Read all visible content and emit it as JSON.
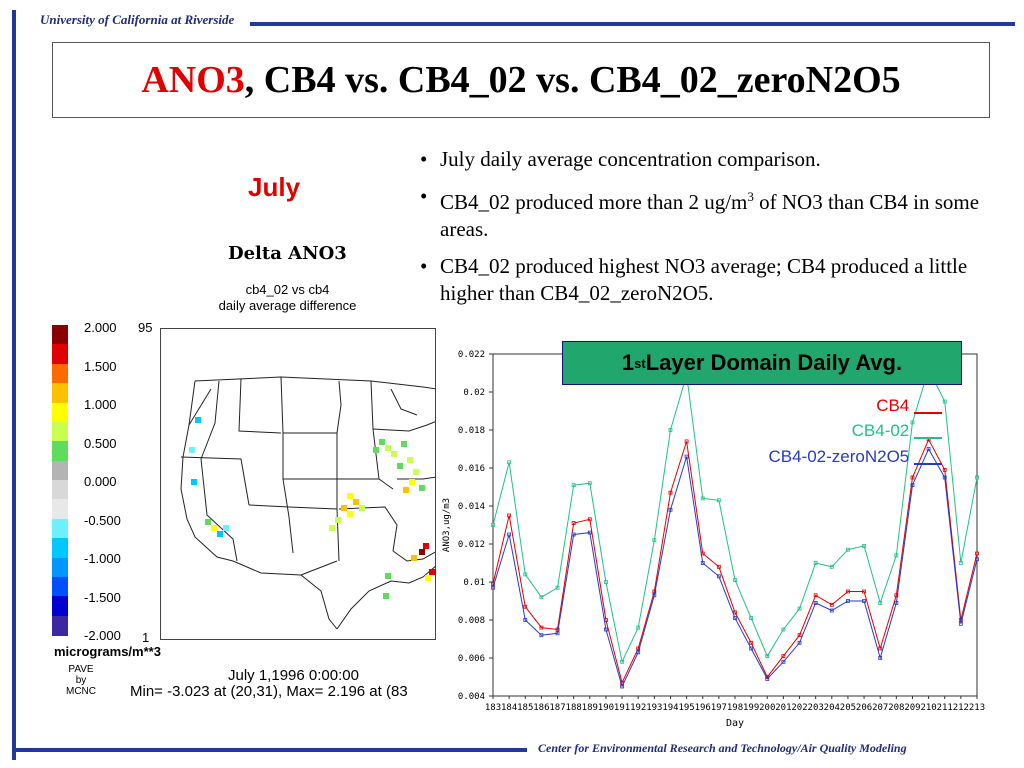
{
  "header": {
    "institution": "University of California at Riverside"
  },
  "footer": {
    "center": "Center for Environmental Research and Technology/Air Quality Modeling"
  },
  "title": {
    "red_part": "ANO3",
    "rest": ", CB4 vs. CB4_02 vs. CB4_02_zeroN2O5"
  },
  "bullets": [
    {
      "marker": "•",
      "text": "July daily average concentration comparison."
    },
    {
      "marker": "•",
      "pre": "CB4_02 produced more than 2 ug/m",
      "sup": "3",
      "post": " of NO3 than CB4 in some areas."
    },
    {
      "marker": "•",
      "text": "CB4_02 produced highest NO3 average; CB4 produced a little higher than CB4_02_zeroN2O5."
    }
  ],
  "map": {
    "month": "July",
    "title": "Delta ANO3",
    "subtitle_1": "cb4_02 vs cb4",
    "subtitle_2": "daily average difference",
    "legend_values": [
      "2.000",
      "1.500",
      "1.000",
      "0.500",
      "0.000",
      "-0.500",
      "-1.000",
      "-1.500",
      "-2.000"
    ],
    "legend_colors": [
      "#8b0000",
      "#e00000",
      "#ff6a00",
      "#ffc000",
      "#ffff00",
      "#c8ff50",
      "#5fdc5f",
      "#b4b4b4",
      "#d8d8d8",
      "#e8e8e8",
      "#6ef0ff",
      "#00c8ff",
      "#0096ff",
      "#0050ff",
      "#0000d0",
      "#3c28a0"
    ],
    "grid_top": "95",
    "grid_bottom": "1",
    "units": "micrograms/m**3",
    "pave_1": "PAVE",
    "pave_2": "by",
    "pave_3": "MCNC",
    "datetime": "July 1,1996 0:00:00",
    "minmax": "Min=  -3.023 at (20,31), Max=   2.196 at (83"
  },
  "badge": {
    "prefix": "1",
    "sup": "st",
    "rest": " Layer Domain Daily Avg."
  },
  "chart_legend": [
    {
      "label": "CB4",
      "color": "#e00000"
    },
    {
      "label": "CB4-02",
      "color": "#21c08a"
    },
    {
      "label": "CB4-02-zeroN2O5",
      "color": "#2a3ac0"
    }
  ],
  "chart_data": {
    "type": "line",
    "ylabel": "ANO3,ug/m3",
    "xlabel": "Day",
    "ylim": [
      0.004,
      0.022
    ],
    "yticks": [
      "0.004",
      "0.006",
      "0.008",
      "0.01",
      "0.012",
      "0.014",
      "0.016",
      "0.018",
      "0.02",
      "0.022"
    ],
    "x": [
      "183",
      "184",
      "185",
      "186",
      "187",
      "188",
      "189",
      "190",
      "191",
      "192",
      "193",
      "194",
      "195",
      "196",
      "197",
      "198",
      "199",
      "200",
      "201",
      "202",
      "203",
      "204",
      "205",
      "206",
      "207",
      "208",
      "209",
      "210",
      "211",
      "212",
      "213"
    ],
    "series": [
      {
        "name": "CB4",
        "color": "#e00000",
        "values": [
          0.0099,
          0.0135,
          0.0087,
          0.0076,
          0.0075,
          0.0131,
          0.0133,
          0.008,
          0.0047,
          0.0065,
          0.0095,
          0.0147,
          0.0174,
          0.0115,
          0.0108,
          0.0084,
          0.0068,
          0.005,
          0.0061,
          0.0072,
          0.0093,
          0.0088,
          0.0095,
          0.0095,
          0.0065,
          0.0093,
          0.0155,
          0.0175,
          0.0159,
          0.008,
          0.0115
        ]
      },
      {
        "name": "CB4-02",
        "color": "#21c08a",
        "values": [
          0.013,
          0.0163,
          0.0104,
          0.0092,
          0.0097,
          0.0151,
          0.0152,
          0.01,
          0.0058,
          0.0076,
          0.0122,
          0.018,
          0.0209,
          0.0144,
          0.0143,
          0.0101,
          0.0081,
          0.0061,
          0.0075,
          0.0086,
          0.011,
          0.0108,
          0.0117,
          0.0119,
          0.0089,
          0.0114,
          0.0184,
          0.0212,
          0.0195,
          0.011,
          0.0155
        ]
      },
      {
        "name": "CB4-02-zeroN2O5",
        "color": "#2a3ac0",
        "values": [
          0.0097,
          0.0125,
          0.008,
          0.0072,
          0.0073,
          0.0125,
          0.0126,
          0.0075,
          0.0045,
          0.0063,
          0.0093,
          0.0138,
          0.0166,
          0.011,
          0.0103,
          0.0081,
          0.0065,
          0.0049,
          0.0058,
          0.0068,
          0.0089,
          0.0085,
          0.009,
          0.009,
          0.006,
          0.0089,
          0.0151,
          0.017,
          0.0155,
          0.0078,
          0.0112
        ]
      }
    ]
  }
}
